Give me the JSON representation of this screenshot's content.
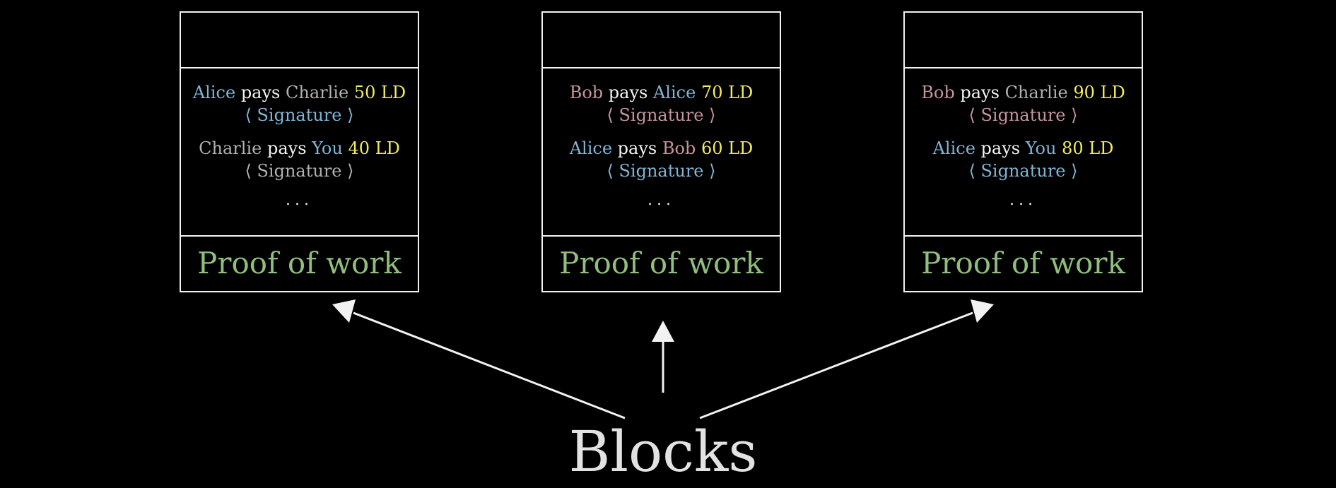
{
  "colors": {
    "Alice": "#7fb5d6",
    "Bob": "#c6949c",
    "Charlie": "#b0b0b0",
    "You": "#7fb5d6",
    "pays": "#f4f4f4",
    "amount": "#f2ec5a",
    "proof": "#8fbf7a",
    "frame": "#f2f2f2",
    "background": "#000000"
  },
  "blocks": [
    {
      "transactions": [
        {
          "from": "Alice",
          "verb": "pays",
          "to": "Charlie",
          "amount": "50 LD",
          "signature": "⟨ Signature ⟩",
          "sig_color": "#7fb5d6"
        },
        {
          "from": "Charlie",
          "verb": "pays",
          "to": "You",
          "amount": "40 LD",
          "signature": "⟨ Signature ⟩",
          "sig_color": "#b0b0b0"
        }
      ],
      "ellipsis": "...",
      "proof": "Proof of work"
    },
    {
      "transactions": [
        {
          "from": "Bob",
          "verb": "pays",
          "to": "Alice",
          "amount": "70 LD",
          "signature": "⟨ Signature ⟩",
          "sig_color": "#c6949c"
        },
        {
          "from": "Alice",
          "verb": "pays",
          "to": "Bob",
          "amount": "60 LD",
          "signature": "⟨ Signature ⟩",
          "sig_color": "#7fb5d6"
        }
      ],
      "ellipsis": "...",
      "proof": "Proof of work"
    },
    {
      "transactions": [
        {
          "from": "Bob",
          "verb": "pays",
          "to": "Charlie",
          "amount": "90 LD",
          "signature": "⟨ Signature ⟩",
          "sig_color": "#c6949c"
        },
        {
          "from": "Alice",
          "verb": "pays",
          "to": "You",
          "amount": "80 LD",
          "signature": "⟨ Signature ⟩",
          "sig_color": "#7fb5d6"
        }
      ],
      "ellipsis": "...",
      "proof": "Proof of work"
    }
  ],
  "label": "Blocks"
}
